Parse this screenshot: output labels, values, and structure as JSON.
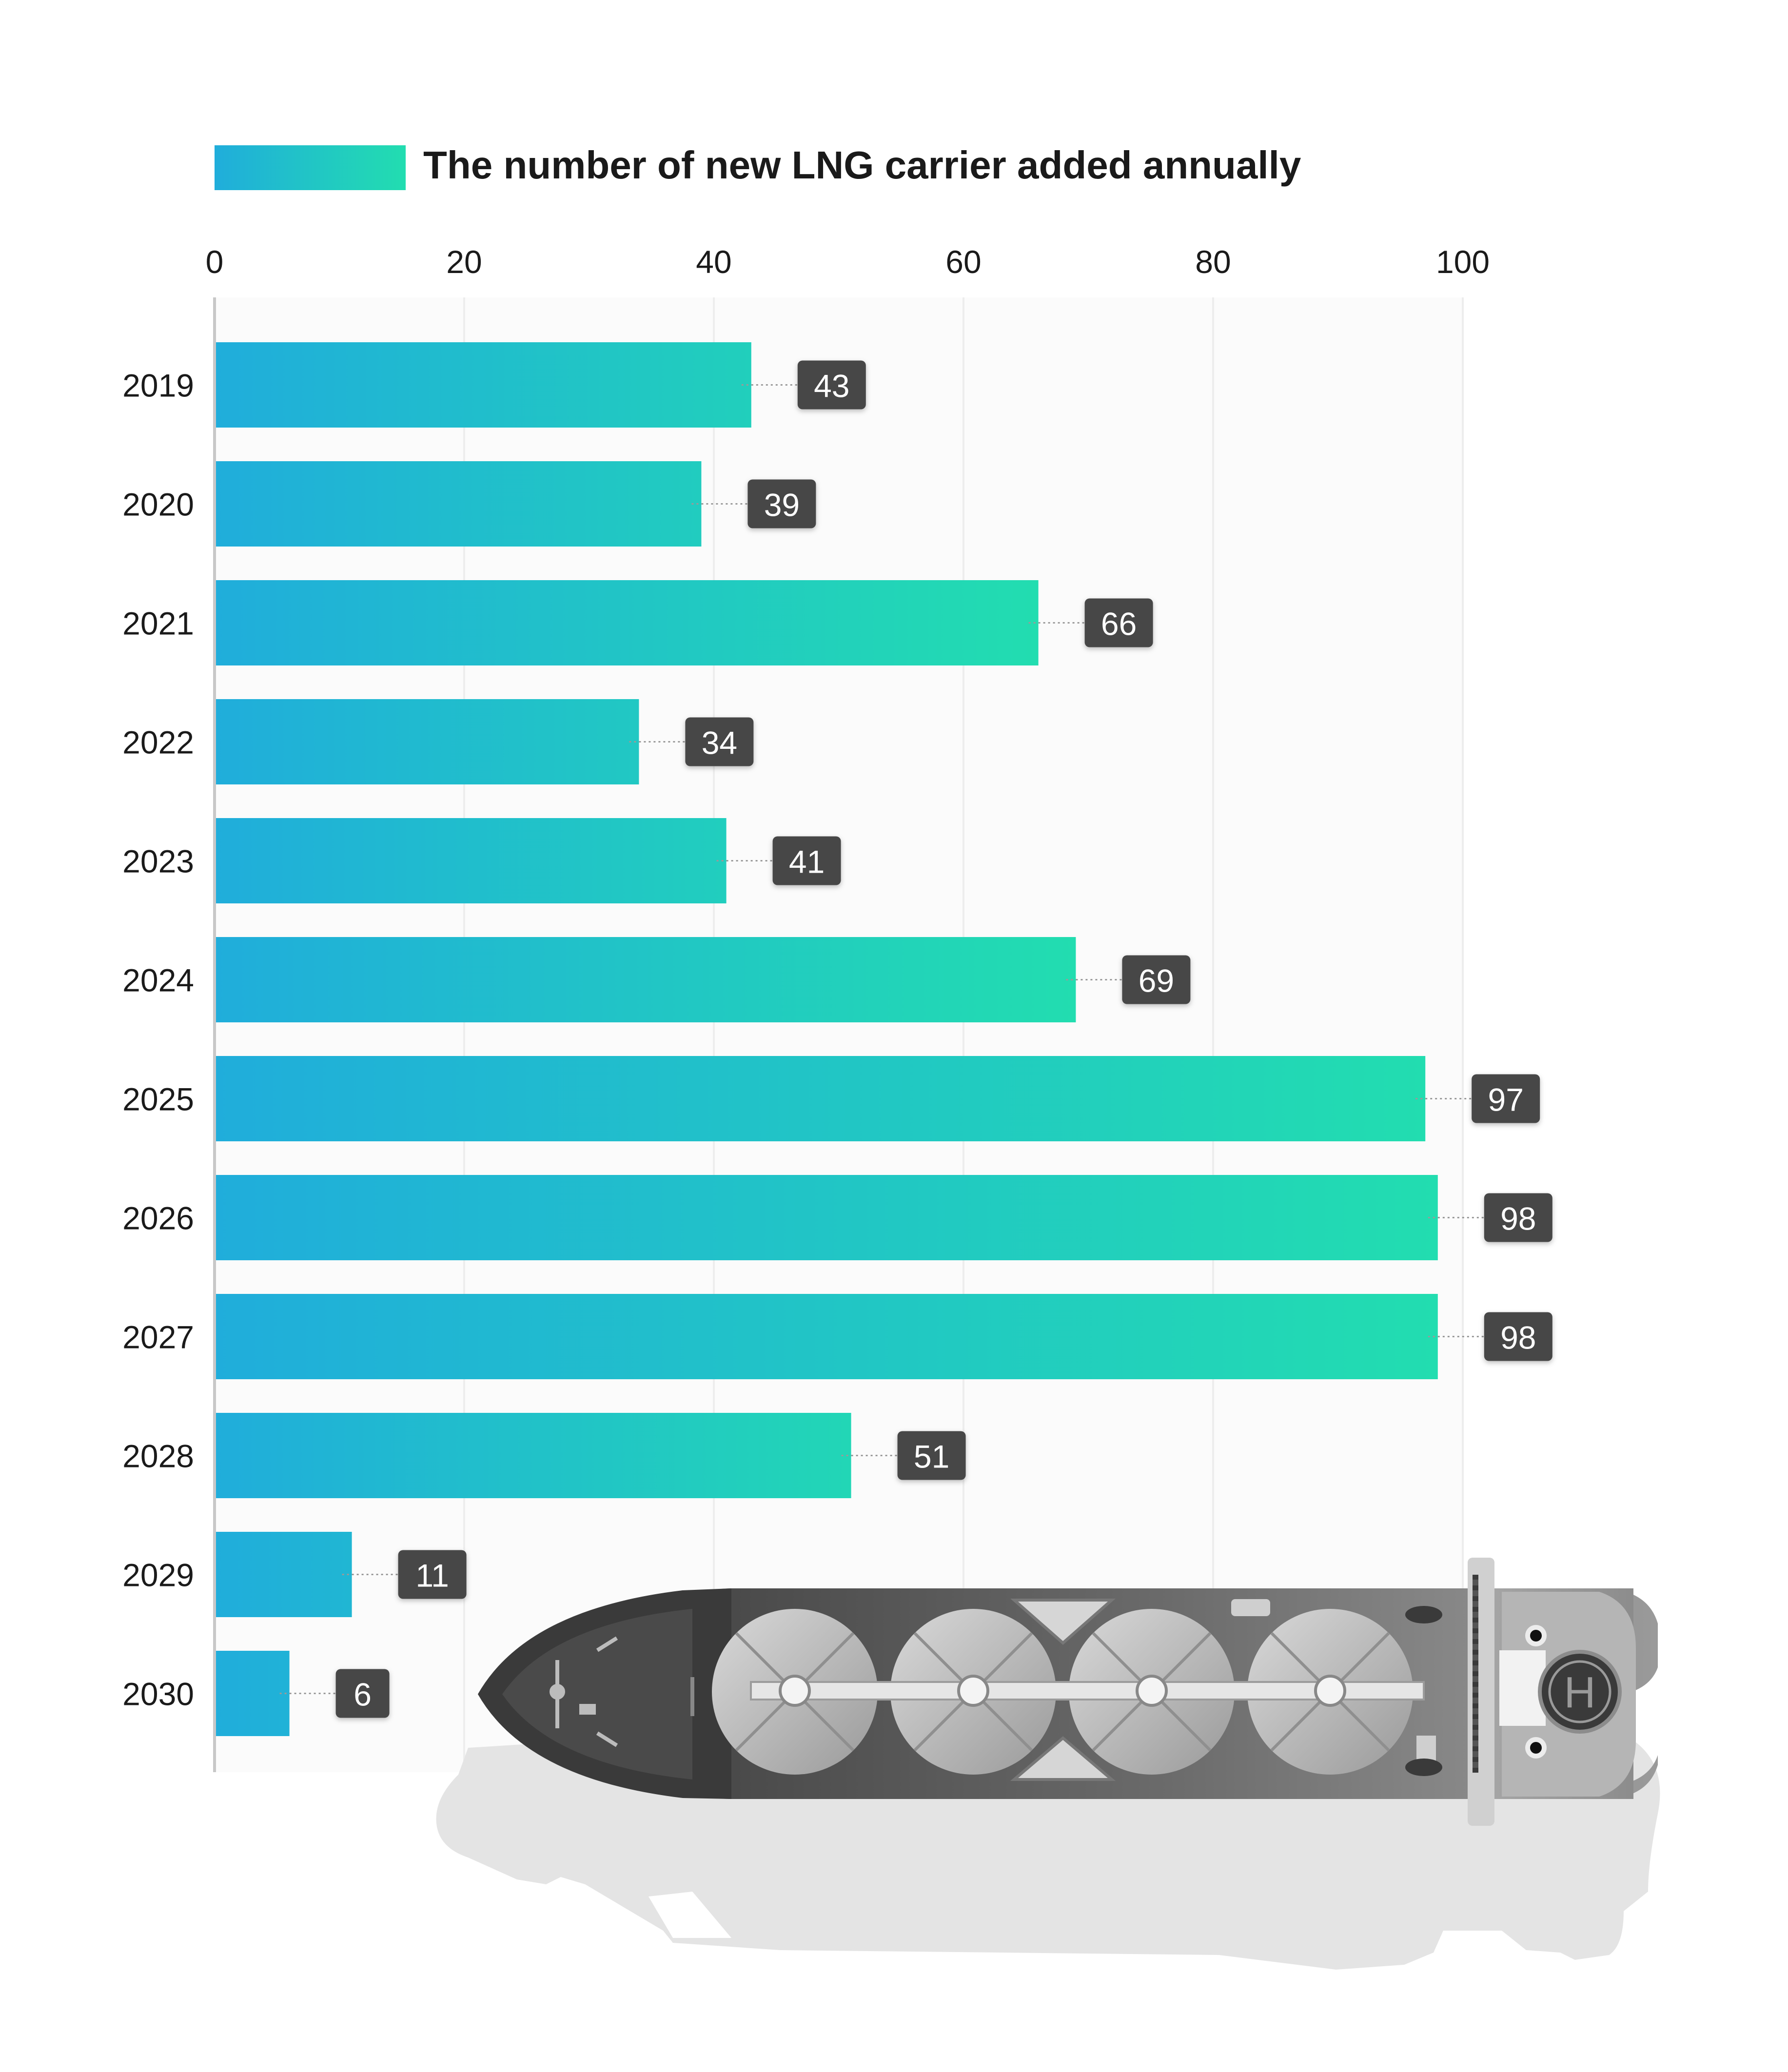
{
  "chart_data": {
    "type": "bar",
    "orientation": "horizontal",
    "legend": "The number of new LNG carrier added annually",
    "legend_position": "top-left",
    "x_axis_position": "top",
    "xlim": [
      0,
      100
    ],
    "x_ticks": [
      0,
      20,
      40,
      60,
      80,
      100
    ],
    "grid": true,
    "categories": [
      "2019",
      "2020",
      "2021",
      "2022",
      "2023",
      "2024",
      "2025",
      "2026",
      "2027",
      "2028",
      "2029",
      "2030"
    ],
    "series": [
      {
        "name": "The number of new LNG carrier added annually",
        "values": [
          43,
          39,
          66,
          34,
          41,
          69,
          97,
          98,
          98,
          51,
          11,
          6
        ]
      }
    ],
    "data_labels": true
  },
  "colors": {
    "gradient_start": "#20ADDB",
    "gradient_end": "#22DDB0",
    "label_bg": "#474747",
    "label_text": "#ffffff",
    "axis_line": "#c8c8c8",
    "grid_line": "#ededed",
    "plot_bg": "#fbfbfb",
    "text": "#1a1a1a"
  },
  "illustration": "lng-carrier-ship"
}
